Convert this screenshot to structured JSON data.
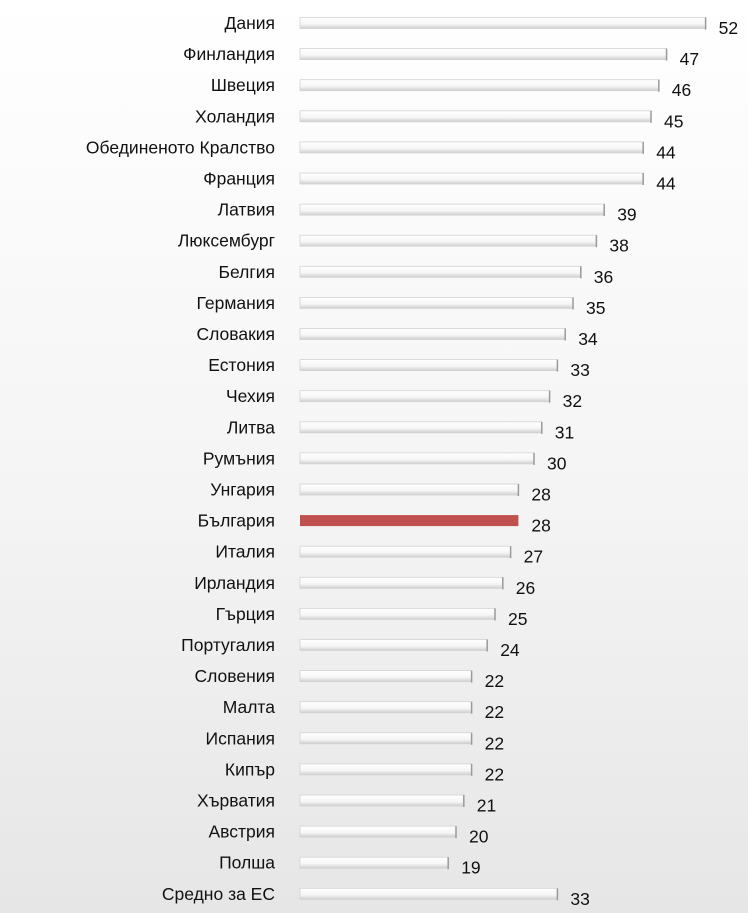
{
  "chart_data": {
    "type": "bar",
    "orientation": "horizontal",
    "categories": [
      "Дания",
      "Финландия",
      "Швеция",
      "Холандия",
      "Обединеното Кралство",
      "Франция",
      "Латвия",
      "Люксембург",
      "Белгия",
      "Германия",
      "Словакия",
      "Естония",
      "Чехия",
      "Литва",
      "Румъния",
      "Унгария",
      "България",
      "Италия",
      "Ирландия",
      "Гърция",
      "Португалия",
      "Словения",
      "Малта",
      "Испания",
      "Кипър",
      "Хърватия",
      "Австрия",
      "Полша",
      "Средно за ЕС"
    ],
    "values": [
      52,
      47,
      46,
      45,
      44,
      44,
      39,
      38,
      36,
      35,
      34,
      33,
      32,
      31,
      30,
      28,
      28,
      27,
      26,
      25,
      24,
      22,
      22,
      22,
      22,
      21,
      20,
      19,
      33
    ],
    "highlight": "България",
    "colors": {
      "bar": "#fbfbfb",
      "bar_edge": "#d2d2d2",
      "highlight": "#c0504d",
      "text": "#111111"
    },
    "data_labels": true,
    "grid": false,
    "axes_visible": false
  }
}
